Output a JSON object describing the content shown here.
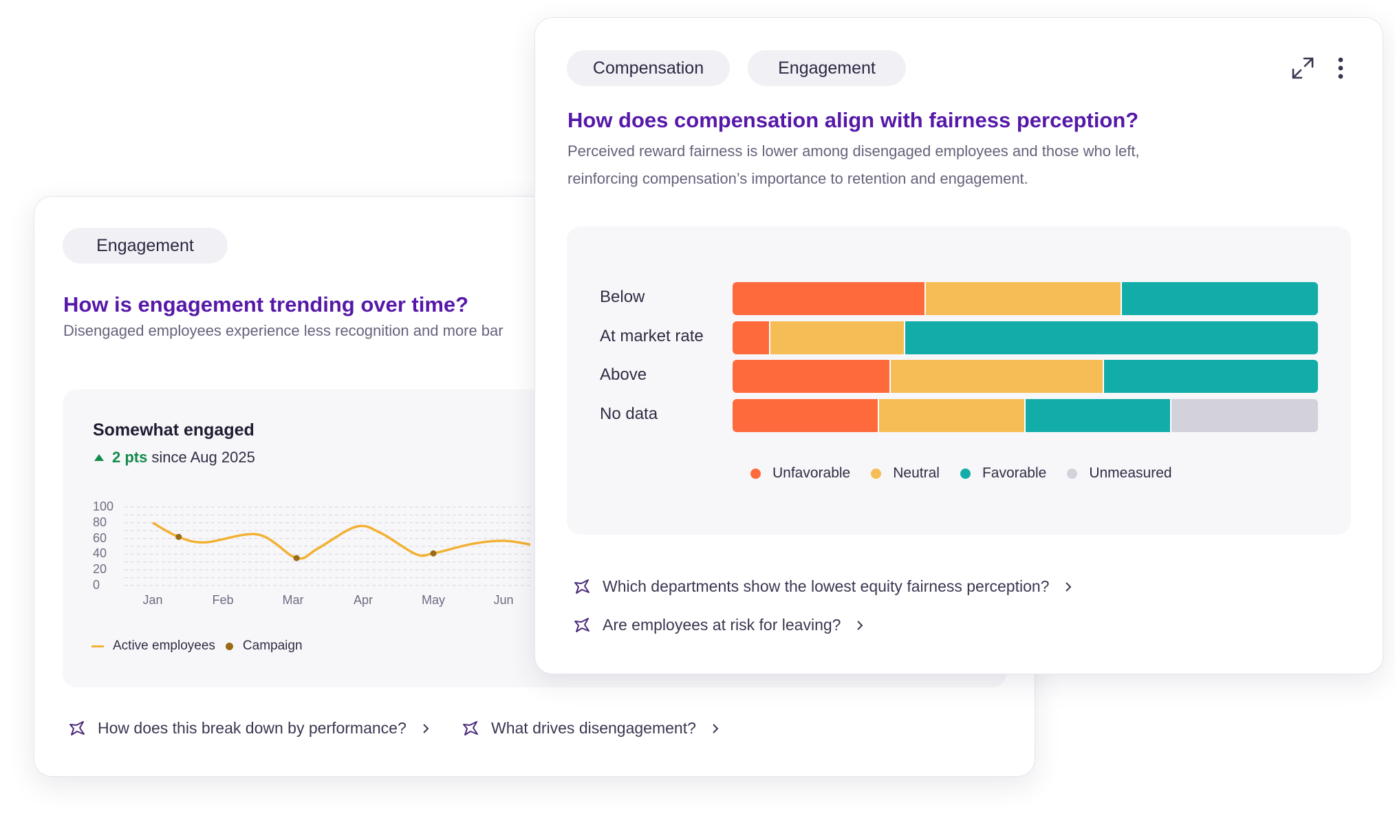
{
  "back_card": {
    "tag": "Engagement",
    "title": "How is engagement trending over time?",
    "subtitle": "Disengaged employees experience less recognition and more bar",
    "metric_title": "Somewhat engaged",
    "delta_value": "2 pts",
    "delta_suffix": "since Aug 2025",
    "legend": {
      "line_label": "Active employees",
      "marker_label": "Campaign"
    },
    "suggestions": [
      {
        "label": "How does this break down by performance?"
      },
      {
        "label": "What drives disengagement?"
      }
    ]
  },
  "front_card": {
    "tags": [
      "Compensation",
      "Engagement"
    ],
    "title": "How does compensation align with fairness perception?",
    "subtitle_line1": "Perceived reward fairness is lower among disengaged employees and those who left,",
    "subtitle_line2": "reinforcing compensation’s importance to retention and engagement.",
    "icons": {
      "expand": "expand-icon",
      "more": "more-vertical-icon"
    },
    "suggestions": [
      {
        "label": "Which departments show the lowest equity fairness perception?"
      },
      {
        "label": "Are employees at risk for leaving?"
      }
    ]
  },
  "colors": {
    "accent": "#5618a8",
    "unfavorable": "#ff6a3d",
    "neutral": "#f6bd56",
    "favorable": "#12ada9",
    "unmeasured": "#d3d2dc",
    "line": "#f2b134",
    "campaign": "#9a6b17",
    "positive": "#118a4a"
  },
  "chart_data": [
    {
      "type": "line",
      "title": "Somewhat engaged",
      "x": [
        "Jan",
        "Feb",
        "Mar",
        "Apr",
        "May",
        "Jun"
      ],
      "ylim": [
        0,
        100
      ],
      "yticks": [
        100,
        80,
        60,
        40,
        20,
        0
      ],
      "grid": true,
      "series": [
        {
          "name": "Active employees",
          "points": [
            [
              0.0,
              80
            ],
            [
              0.37,
              62
            ],
            [
              0.75,
              55
            ],
            [
              1.5,
              65
            ],
            [
              2.05,
              35
            ],
            [
              2.35,
              47
            ],
            [
              2.9,
              75
            ],
            [
              3.25,
              67
            ],
            [
              3.75,
              40
            ],
            [
              4.0,
              41
            ],
            [
              4.55,
              53
            ],
            [
              5.0,
              57
            ],
            [
              5.4,
              52
            ]
          ]
        }
      ],
      "markers": {
        "name": "Campaign",
        "points": [
          [
            0.37,
            62
          ],
          [
            2.05,
            35
          ],
          [
            4.0,
            41
          ]
        ]
      },
      "legend": "bottom-left"
    },
    {
      "type": "bar",
      "orientation": "horizontal",
      "stacked": "percent",
      "categories": [
        "Below",
        "At market rate",
        "Above",
        "No data"
      ],
      "series": [
        {
          "name": "Unfavorable",
          "values": [
            33,
            6.5,
            27,
            25
          ]
        },
        {
          "name": "Neutral",
          "values": [
            33.5,
            23,
            36.5,
            25
          ]
        },
        {
          "name": "Favorable",
          "values": [
            33.5,
            70.5,
            36.5,
            25
          ]
        },
        {
          "name": "Unmeasured",
          "values": [
            0,
            0,
            0,
            25
          ]
        }
      ],
      "legend": "bottom"
    }
  ]
}
